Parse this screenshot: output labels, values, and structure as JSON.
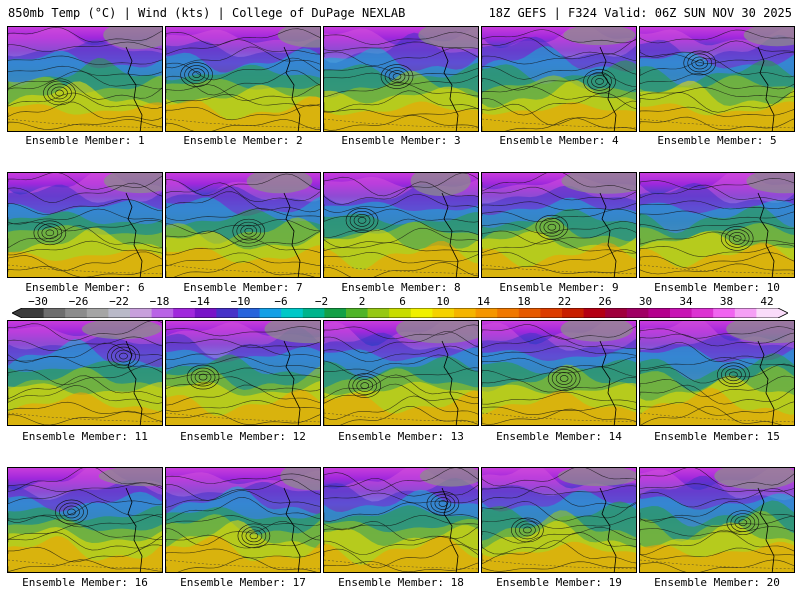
{
  "header": {
    "left": "850mb Temp (°C) | Wind (kts) | College of DuPage NEXLAB",
    "right": "18Z GEFS | F324 Valid: 06Z SUN NOV 30 2025"
  },
  "colorbar": {
    "labels": [
      "−30",
      "−26",
      "−22",
      "−18",
      "−14",
      "−10",
      "−6",
      "−2",
      "2",
      "6",
      "10",
      "14",
      "18",
      "22",
      "26",
      "30",
      "34",
      "38",
      "42"
    ],
    "colors": [
      "#3c3c3c",
      "#6e6e6e",
      "#8c8c8c",
      "#a5a5a5",
      "#b9b9c8",
      "#c8a0dc",
      "#b964e6",
      "#a028dc",
      "#7814c8",
      "#4632c8",
      "#2864dc",
      "#14a0e6",
      "#00c8c8",
      "#00b48c",
      "#14a046",
      "#50b428",
      "#96c814",
      "#c8dc00",
      "#f0f000",
      "#f5d200",
      "#f5b400",
      "#f59600",
      "#f07800",
      "#e65a00",
      "#dc3c00",
      "#c81e00",
      "#b40014",
      "#a0003c",
      "#a00064",
      "#b4008c",
      "#c814b4",
      "#dc32d2",
      "#f064f0",
      "#f5a0f5",
      "#fadcfa"
    ]
  },
  "members": [
    {
      "label": "Ensemble Member: 1"
    },
    {
      "label": "Ensemble Member: 2"
    },
    {
      "label": "Ensemble Member: 3"
    },
    {
      "label": "Ensemble Member: 4"
    },
    {
      "label": "Ensemble Member: 5"
    },
    {
      "label": "Ensemble Member: 6"
    },
    {
      "label": "Ensemble Member: 7"
    },
    {
      "label": "Ensemble Member: 8"
    },
    {
      "label": "Ensemble Member: 9"
    },
    {
      "label": "Ensemble Member: 10"
    },
    {
      "label": "Ensemble Member: 11"
    },
    {
      "label": "Ensemble Member: 12"
    },
    {
      "label": "Ensemble Member: 13"
    },
    {
      "label": "Ensemble Member: 14"
    },
    {
      "label": "Ensemble Member: 15"
    },
    {
      "label": "Ensemble Member: 16"
    },
    {
      "label": "Ensemble Member: 17"
    },
    {
      "label": "Ensemble Member: 18"
    },
    {
      "label": "Ensemble Member: 19"
    },
    {
      "label": "Ensemble Member: 20"
    }
  ]
}
